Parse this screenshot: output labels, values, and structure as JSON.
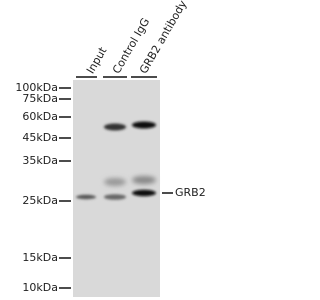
{
  "lanes": [
    "Input",
    "Control IgG",
    "GRB2 antibody"
  ],
  "markers": [
    "100kDa",
    "75kDa",
    "60kDa",
    "45kDa",
    "35kDa",
    "25kDa",
    "15kDa",
    "10kDa"
  ],
  "target": "GRB2"
}
